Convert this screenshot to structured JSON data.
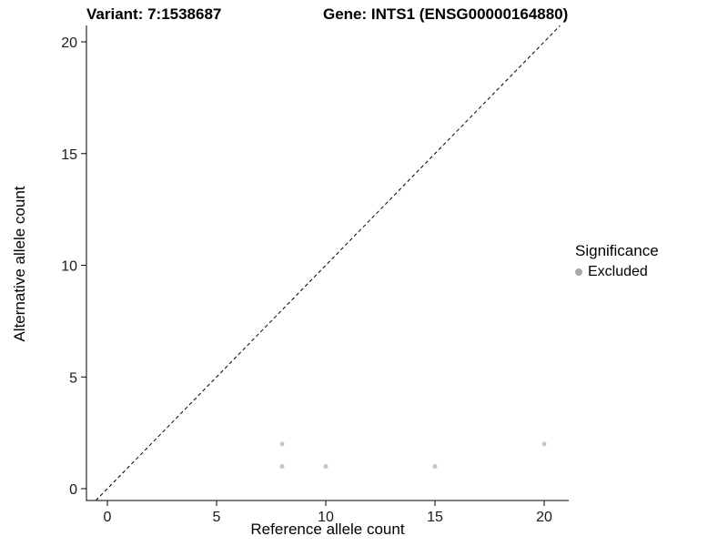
{
  "header": {
    "title_left": "Variant: 7:1538687",
    "title_right": "Gene: INTS1 (ENSG00000164880)"
  },
  "chart_data": {
    "type": "scatter",
    "title_left": "Variant: 7:1538687",
    "title_right": "Gene: INTS1 (ENSG00000164880)",
    "xlabel": "Reference allele count",
    "ylabel": "Alternative allele count",
    "xticks": [
      0,
      5,
      10,
      15,
      20
    ],
    "yticks": [
      0,
      5,
      10,
      15,
      20
    ],
    "xlim": [
      -0.96,
      21.13
    ],
    "ylim": [
      -0.53,
      20.73
    ],
    "grid": false,
    "points": [
      {
        "x": 8,
        "y": 2
      },
      {
        "x": 8,
        "y": 1
      },
      {
        "x": 10,
        "y": 1
      },
      {
        "x": 15,
        "y": 1
      },
      {
        "x": 20,
        "y": 2
      }
    ],
    "point_color": "#c6c6c6",
    "point_radius": 2.5,
    "reference_line": {
      "slope": 1,
      "intercept": 0,
      "style": "dashed",
      "color": "#000000"
    },
    "legend": {
      "title": "Significance",
      "position": "right",
      "items": [
        {
          "label": "Excluded",
          "color": "#a8a8a8"
        }
      ]
    }
  }
}
